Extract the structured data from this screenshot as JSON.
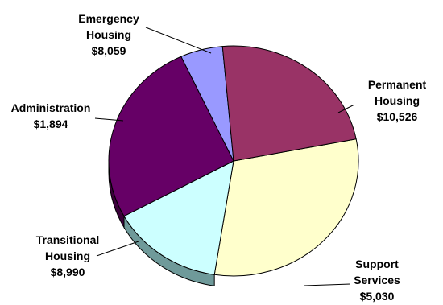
{
  "chart_data": {
    "type": "pie",
    "style": "3d",
    "title": "",
    "slices": [
      {
        "name": "Emergency Housing",
        "label_lines": [
          "Emergency",
          "Housing"
        ],
        "value": 8059,
        "display_value": "$8,059",
        "color": "#993366",
        "side_color": "#5e1f3e"
      },
      {
        "name": "Permanent Housing",
        "label_lines": [
          "Permanent",
          "Housing"
        ],
        "value": 10526,
        "display_value": "$10,526",
        "color": "#ffffcc",
        "side_color": "#9a9a66"
      },
      {
        "name": "Support Services",
        "label_lines": [
          "Support",
          "Services"
        ],
        "value": 5030,
        "display_value": "$5,030",
        "color": "#ccffff",
        "side_color": "#6f9a9a"
      },
      {
        "name": "Transitional Housing",
        "label_lines": [
          "Transitional",
          "Housing"
        ],
        "value": 8990,
        "display_value": "$8,990",
        "color": "#660066",
        "side_color": "#3a003a"
      },
      {
        "name": "Administration",
        "label_lines": [
          "Administration"
        ],
        "value": 1894,
        "display_value": "$1,894",
        "color": "#9999ff",
        "side_color": "#55559a"
      }
    ]
  }
}
